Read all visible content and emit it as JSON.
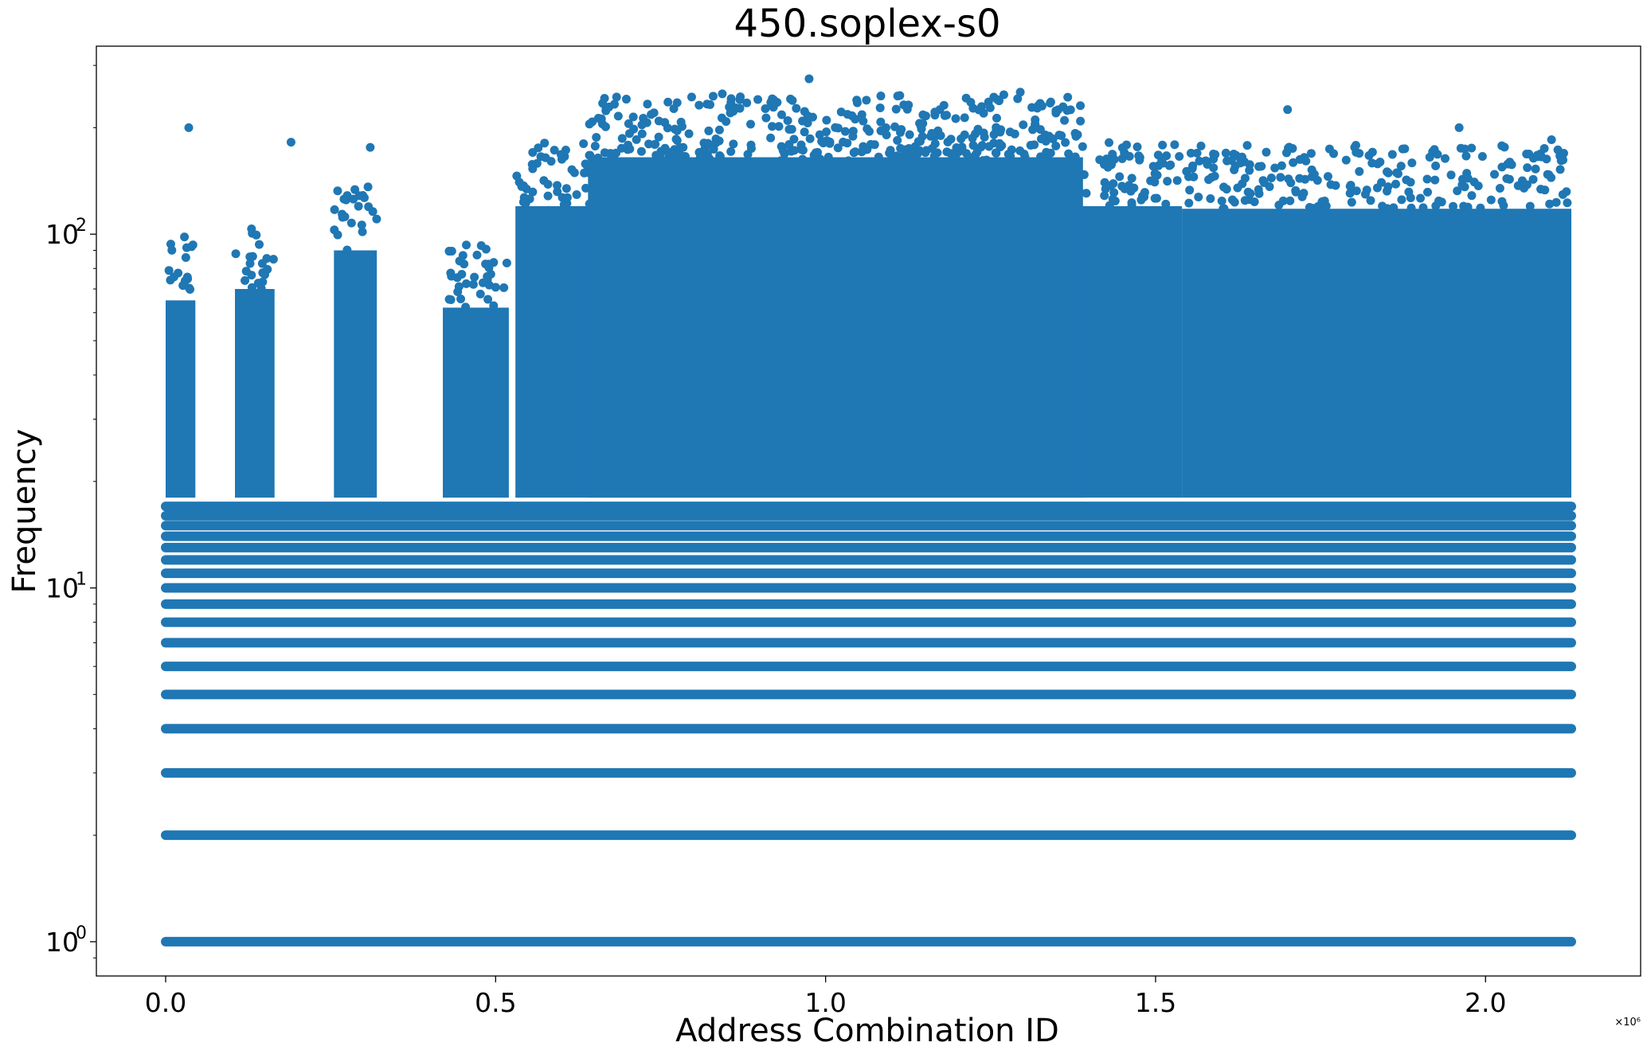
{
  "chart_data": {
    "type": "scatter",
    "title": "450.soplex-s0",
    "xlabel": "Address Combination ID",
    "ylabel": "Frequency",
    "x_offset_label": "×10⁶",
    "xlim": [
      -105000,
      2235000
    ],
    "ylim": [
      0.8,
      340
    ],
    "yscale": "log",
    "x_ticks": [
      {
        "value": 0,
        "label": "0.0"
      },
      {
        "value": 500000,
        "label": "0.5"
      },
      {
        "value": 1000000,
        "label": "1.0"
      },
      {
        "value": 1500000,
        "label": "1.5"
      },
      {
        "value": 2000000,
        "label": "2.0"
      }
    ],
    "y_ticks": [
      {
        "value": 1,
        "base": "10",
        "exp": "0"
      },
      {
        "value": 10,
        "base": "10",
        "exp": "1"
      },
      {
        "value": 100,
        "base": "10",
        "exp": "2"
      }
    ],
    "color": "#1f77b4",
    "grid": false,
    "series": [
      {
        "x_range": [
          0,
          2130000
        ],
        "solid_frequency_bands": [
          1,
          2,
          3,
          4,
          5,
          6,
          7,
          8,
          9,
          10,
          11,
          12,
          13,
          14,
          15,
          16,
          17
        ],
        "dense_regions": [
          {
            "x": [
              0,
              45000
            ],
            "y": [
              18,
              65
            ]
          },
          {
            "x": [
              105000,
              165000
            ],
            "y": [
              18,
              70
            ]
          },
          {
            "x": [
              255000,
              320000
            ],
            "y": [
              18,
              90
            ]
          },
          {
            "x": [
              420000,
              520000
            ],
            "y": [
              18,
              62
            ]
          },
          {
            "x": [
              530000,
              1540000
            ],
            "y": [
              18,
              120
            ]
          },
          {
            "x": [
              640000,
              1390000
            ],
            "y": [
              18,
              165
            ]
          },
          {
            "x": [
              1540000,
              2130000
            ],
            "y": [
              18,
              118
            ]
          }
        ],
        "peak_points": [
          {
            "x": 35000,
            "y": 200
          },
          {
            "x": 190000,
            "y": 182
          },
          {
            "x": 310000,
            "y": 176
          },
          {
            "x": 680000,
            "y": 233
          },
          {
            "x": 870000,
            "y": 240
          },
          {
            "x": 975000,
            "y": 275
          },
          {
            "x": 1220000,
            "y": 236
          },
          {
            "x": 1295000,
            "y": 252
          },
          {
            "x": 1700000,
            "y": 225
          },
          {
            "x": 1960000,
            "y": 200
          },
          {
            "x": 2100000,
            "y": 185
          }
        ]
      }
    ]
  }
}
